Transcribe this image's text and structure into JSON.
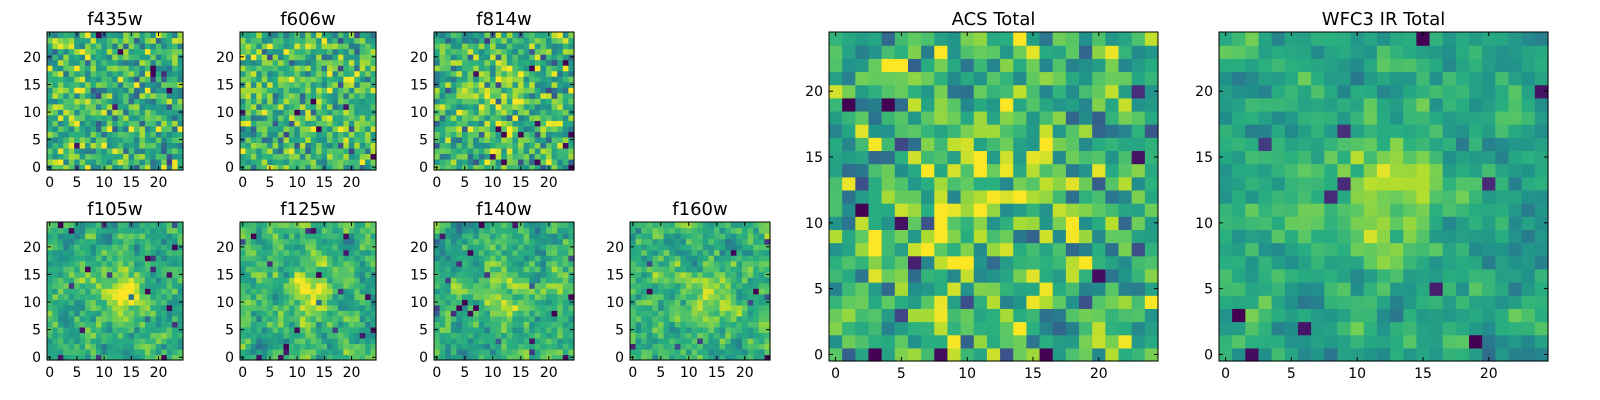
{
  "chart_data": [
    {
      "type": "heatmap",
      "title": "f435w",
      "grid_size": 25,
      "xlim": [
        0,
        24
      ],
      "ylim": [
        0,
        24
      ],
      "x_ticks": [
        "0",
        "5",
        "10",
        "15",
        "20"
      ],
      "y_ticks": [
        "0",
        "5",
        "10",
        "15",
        "20"
      ],
      "colormap": "viridis",
      "structure": "noise"
    },
    {
      "type": "heatmap",
      "title": "f606w",
      "grid_size": 25,
      "xlim": [
        0,
        24
      ],
      "ylim": [
        0,
        24
      ],
      "x_ticks": [
        "0",
        "5",
        "10",
        "15",
        "20"
      ],
      "y_ticks": [
        "0",
        "5",
        "10",
        "15",
        "20"
      ],
      "colormap": "viridis",
      "structure": "noise"
    },
    {
      "type": "heatmap",
      "title": "f814w",
      "grid_size": 25,
      "xlim": [
        0,
        24
      ],
      "ylim": [
        0,
        24
      ],
      "x_ticks": [
        "0",
        "5",
        "10",
        "15",
        "20"
      ],
      "y_ticks": [
        "0",
        "5",
        "10",
        "15",
        "20"
      ],
      "colormap": "viridis",
      "structure": "faint central source"
    },
    {
      "type": "heatmap",
      "title": "f105w",
      "grid_size": 25,
      "xlim": [
        0,
        24
      ],
      "ylim": [
        0,
        24
      ],
      "x_ticks": [
        "0",
        "5",
        "10",
        "15",
        "20"
      ],
      "y_ticks": [
        "0",
        "5",
        "10",
        "15",
        "20"
      ],
      "colormap": "viridis",
      "structure": "central source"
    },
    {
      "type": "heatmap",
      "title": "f125w",
      "grid_size": 25,
      "xlim": [
        0,
        24
      ],
      "ylim": [
        0,
        24
      ],
      "x_ticks": [
        "0",
        "5",
        "10",
        "15",
        "20"
      ],
      "y_ticks": [
        "0",
        "5",
        "10",
        "15",
        "20"
      ],
      "colormap": "viridis",
      "structure": "central source"
    },
    {
      "type": "heatmap",
      "title": "f140w",
      "grid_size": 25,
      "xlim": [
        0,
        24
      ],
      "ylim": [
        0,
        24
      ],
      "x_ticks": [
        "0",
        "5",
        "10",
        "15",
        "20"
      ],
      "y_ticks": [
        "0",
        "5",
        "10",
        "15",
        "20"
      ],
      "colormap": "viridis",
      "structure": "central source"
    },
    {
      "type": "heatmap",
      "title": "f160w",
      "grid_size": 25,
      "xlim": [
        0,
        24
      ],
      "ylim": [
        0,
        24
      ],
      "x_ticks": [
        "0",
        "5",
        "10",
        "15",
        "20"
      ],
      "y_ticks": [
        "0",
        "5",
        "10",
        "15",
        "20"
      ],
      "colormap": "viridis",
      "structure": "central source"
    },
    {
      "type": "heatmap",
      "title": "ACS Total",
      "grid_size": 25,
      "xlim": [
        0,
        24
      ],
      "ylim": [
        0,
        24
      ],
      "x_ticks": [
        "0",
        "5",
        "10",
        "15",
        "20"
      ],
      "y_ticks": [
        "0",
        "5",
        "10",
        "15",
        "20"
      ],
      "colormap": "viridis",
      "structure": "faint central source"
    },
    {
      "type": "heatmap",
      "title": "WFC3 IR Total",
      "grid_size": 25,
      "xlim": [
        0,
        24
      ],
      "ylim": [
        0,
        24
      ],
      "x_ticks": [
        "0",
        "5",
        "10",
        "15",
        "20"
      ],
      "y_ticks": [
        "0",
        "5",
        "10",
        "15",
        "20"
      ],
      "colormap": "viridis",
      "structure": "bright central source"
    }
  ],
  "colors": {
    "viridis": [
      "#440154",
      "#3b528b",
      "#21918c",
      "#5ec962",
      "#fde725"
    ]
  }
}
